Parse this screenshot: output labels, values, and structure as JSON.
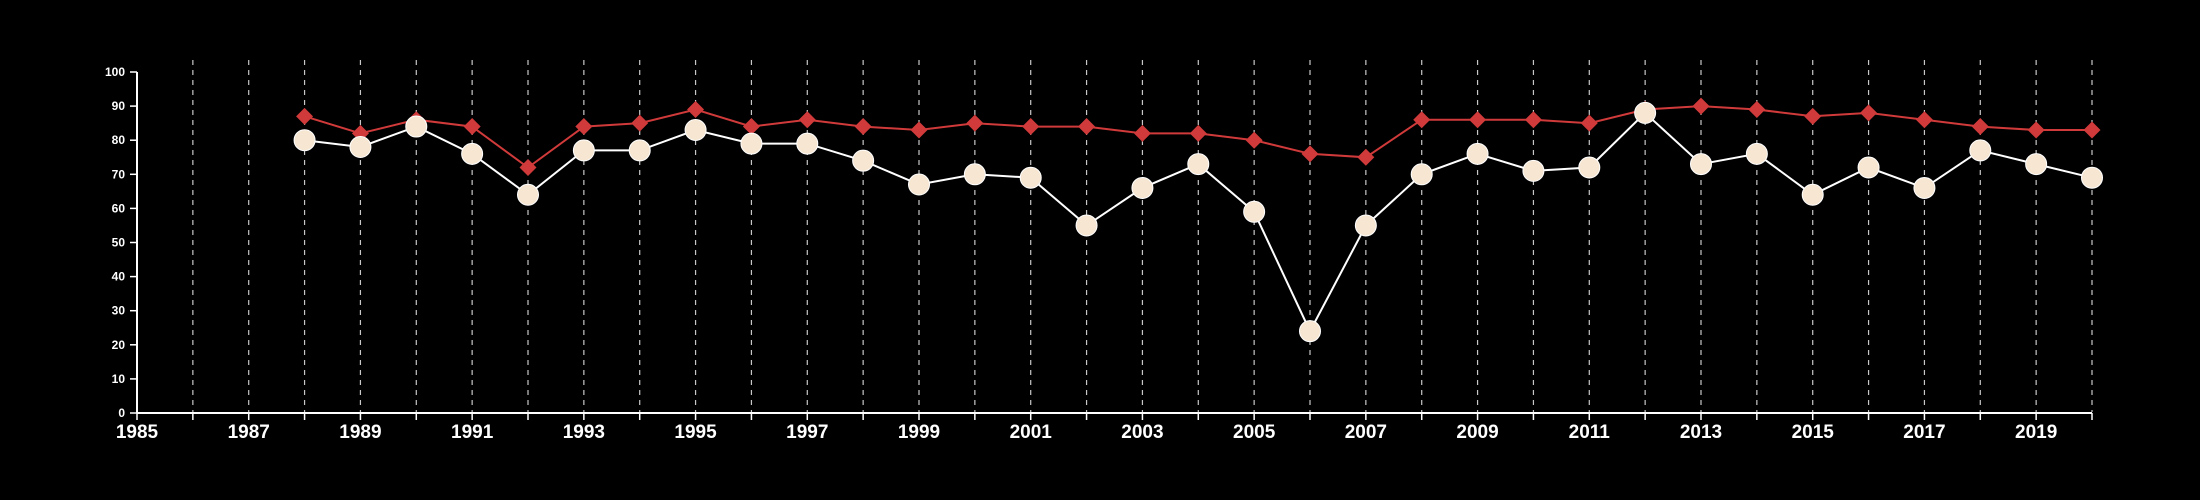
{
  "chart_data": {
    "type": "line",
    "title": "",
    "xlabel": "",
    "ylabel": "",
    "xlim": [
      1985,
      2020
    ],
    "ylim": [
      0,
      100
    ],
    "x_ticks": [
      1985,
      1987,
      1989,
      1991,
      1993,
      1995,
      1997,
      1999,
      2001,
      2003,
      2005,
      2007,
      2009,
      2011,
      2013,
      2015,
      2017,
      2019
    ],
    "x_tick_labels": [
      "1985",
      "1987",
      "1989",
      "1991",
      "1993",
      "1995",
      "1997",
      "1999",
      "2001",
      "2003",
      "2005",
      "2007",
      "2009",
      "2011",
      "2013",
      "2015",
      "2017",
      "2019"
    ],
    "y_ticks": [
      0,
      10,
      20,
      30,
      40,
      50,
      60,
      70,
      80,
      90,
      100
    ],
    "y_tick_labels": [
      "0",
      "10",
      "20",
      "30",
      "40",
      "50",
      "60",
      "70",
      "80",
      "90",
      "100"
    ],
    "grid": {
      "vertical_dashed": true,
      "every_year": true
    },
    "legend": "none",
    "x": [
      1988,
      1989,
      1990,
      1991,
      1992,
      1993,
      1994,
      1995,
      1996,
      1997,
      1998,
      1999,
      2000,
      2001,
      2002,
      2003,
      2004,
      2005,
      2006,
      2007,
      2008,
      2009,
      2010,
      2011,
      2012,
      2013,
      2014,
      2015,
      2016,
      2017,
      2018,
      2019,
      2020
    ],
    "series": [
      {
        "color": "#d03a3a",
        "marker": "diamond",
        "values": [
          87,
          82,
          86,
          84,
          72,
          84,
          85,
          89,
          84,
          86,
          84,
          83,
          85,
          84,
          84,
          82,
          82,
          80,
          76,
          75,
          86,
          86,
          86,
          85,
          89,
          90,
          89,
          87,
          88,
          86,
          84,
          83,
          83
        ]
      },
      {
        "color": "#ffffff",
        "marker_fill": "#f6e6d2",
        "marker": "circle",
        "values": [
          80,
          78,
          84,
          76,
          64,
          77,
          77,
          83,
          79,
          79,
          74,
          67,
          70,
          69,
          55,
          66,
          73,
          59,
          24,
          55,
          70,
          76,
          71,
          72,
          88,
          73,
          76,
          64,
          72,
          66,
          77,
          73,
          69
        ]
      }
    ]
  }
}
